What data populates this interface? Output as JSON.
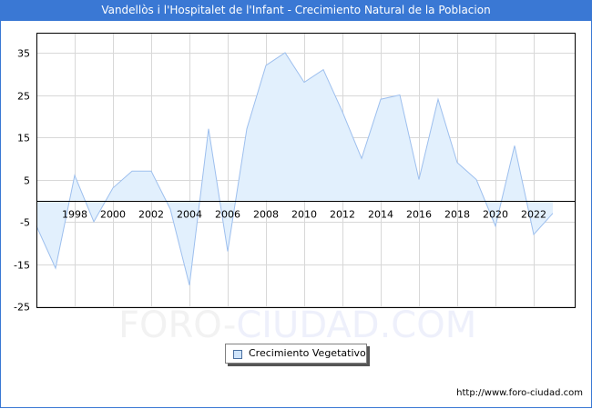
{
  "header": {
    "title": "Vandellòs i l'Hospitalet de l'Infant - Crecimiento Natural de la Poblacion",
    "background_color": "#3a78d4"
  },
  "legend": {
    "label": "Crecimiento Vegetativo"
  },
  "watermark": {
    "part1": "FORO-",
    "part2": "CIUDAD.COM"
  },
  "footer": {
    "url": "http://www.foro-ciudad.com"
  },
  "colors": {
    "line": "#9dbfee",
    "fill": "#e2f0fd",
    "grid": "#d8d8d8",
    "axis": "#000000"
  },
  "chart_data": {
    "type": "area",
    "title": "Vandellòs i l'Hospitalet de l'Infant - Crecimiento Natural de la Poblacion",
    "xlabel": "",
    "ylabel": "",
    "x": [
      1996,
      1997,
      1998,
      1999,
      2000,
      2001,
      2002,
      2003,
      2004,
      2005,
      2006,
      2007,
      2008,
      2009,
      2010,
      2011,
      2012,
      2013,
      2014,
      2015,
      2016,
      2017,
      2018,
      2019,
      2020,
      2021,
      2022,
      2023
    ],
    "series": [
      {
        "name": "Crecimiento Vegetativo",
        "values": [
          -6,
          -16,
          6,
          -5,
          3,
          7,
          7,
          -2,
          -20,
          17,
          -12,
          17,
          32,
          35,
          28,
          31,
          21,
          10,
          24,
          25,
          5,
          24,
          9,
          5,
          -6,
          13,
          -8,
          -3
        ]
      }
    ],
    "x_tick_labels": [
      "1998",
      "2000",
      "2002",
      "2004",
      "2006",
      "2008",
      "2010",
      "2012",
      "2014",
      "2016",
      "2018",
      "2020",
      "2022"
    ],
    "y_tick_labels": [
      "35",
      "25",
      "15",
      "5",
      "-5",
      "-15",
      "-25"
    ],
    "y_ticks": [
      35,
      25,
      15,
      5,
      -5,
      -15,
      -25
    ],
    "x_ticks": [
      1998,
      2000,
      2002,
      2004,
      2006,
      2008,
      2010,
      2012,
      2014,
      2016,
      2018,
      2020,
      2022
    ],
    "ylim": [
      -25,
      40
    ],
    "xlim": [
      1996,
      2024.1
    ],
    "grid": true,
    "legend_position": "bottom-center"
  }
}
